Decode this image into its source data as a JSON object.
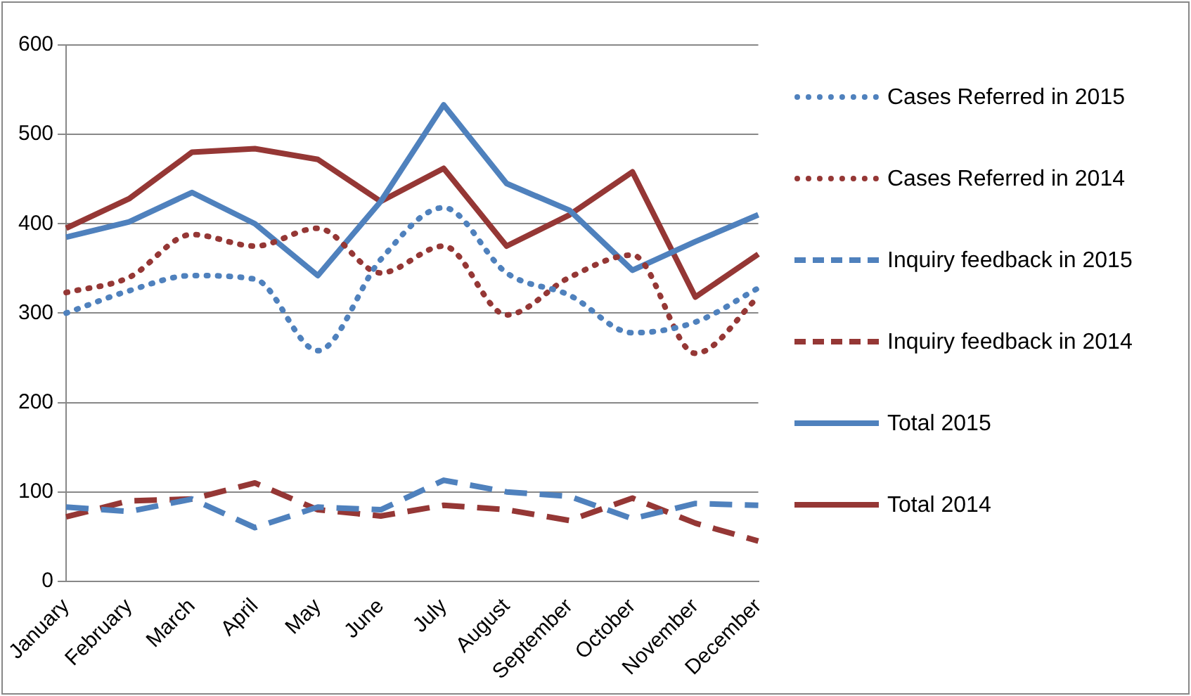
{
  "chart_data": {
    "type": "line",
    "categories": [
      "January",
      "February",
      "March",
      "April",
      "May",
      "June",
      "July",
      "August",
      "September",
      "October",
      "November",
      "December"
    ],
    "series": [
      {
        "name": "Cases Referred in 2015",
        "color": "#4f81bd",
        "line_style": "dotted",
        "values": [
          300,
          325,
          342,
          338,
          258,
          360,
          418,
          345,
          320,
          278,
          290,
          328
        ]
      },
      {
        "name": "Cases Referred in 2014",
        "color": "#953735",
        "line_style": "dotted",
        "values": [
          323,
          340,
          388,
          375,
          395,
          345,
          375,
          298,
          340,
          365,
          255,
          318
        ]
      },
      {
        "name": "Inquiry feedback in 2015",
        "color": "#4f81bd",
        "line_style": "dashed",
        "values": [
          83,
          78,
          92,
          60,
          83,
          80,
          113,
          100,
          95,
          70,
          87,
          85
        ]
      },
      {
        "name": "Inquiry feedback in 2014",
        "color": "#953735",
        "line_style": "dashed",
        "values": [
          72,
          90,
          92,
          110,
          80,
          73,
          85,
          80,
          68,
          93,
          65,
          45
        ]
      },
      {
        "name": "Total 2015",
        "color": "#4f81bd",
        "line_style": "solid",
        "values": [
          385,
          402,
          435,
          400,
          342,
          425,
          533,
          445,
          415,
          348,
          380,
          410
        ]
      },
      {
        "name": "Total 2014",
        "color": "#953735",
        "line_style": "solid",
        "values": [
          395,
          428,
          480,
          484,
          472,
          425,
          462,
          375,
          410,
          458,
          318,
          366
        ]
      }
    ],
    "ylim": [
      0,
      600
    ],
    "yticks": [
      0,
      100,
      200,
      300,
      400,
      500,
      600
    ],
    "grid": "y",
    "legend": "right",
    "marker": "none"
  }
}
